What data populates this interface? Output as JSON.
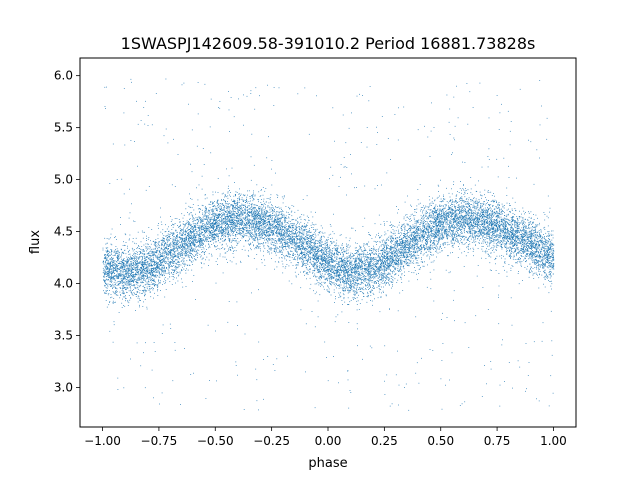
{
  "chart_data": {
    "type": "scatter",
    "title": "1SWASPJ142609.58-391010.2 Period 16881.73828s",
    "xlabel": "phase",
    "ylabel": "flux",
    "xlim": [
      -1.1,
      1.1
    ],
    "ylim": [
      2.62,
      6.17
    ],
    "xticks": [
      -1.0,
      -0.75,
      -0.5,
      -0.25,
      0.0,
      0.25,
      0.5,
      0.75,
      1.0
    ],
    "xtick_labels": [
      "−1.00",
      "−0.75",
      "−0.50",
      "−0.25",
      "0.00",
      "0.25",
      "0.50",
      "0.75",
      "1.00"
    ],
    "yticks": [
      3.0,
      3.5,
      4.0,
      4.5,
      5.0,
      5.5,
      6.0
    ],
    "ytick_labels": [
      "3.0",
      "3.5",
      "4.0",
      "4.5",
      "5.0",
      "5.5",
      "6.0"
    ],
    "grid": false,
    "marker_color": "#1f77b4",
    "series": [
      {
        "x_range": [
          -1.0,
          1.0
        ],
        "curve_points": {
          "x": [
            -1.0,
            -0.9,
            -0.8,
            -0.7,
            -0.6,
            -0.5,
            -0.4,
            -0.3,
            -0.2,
            -0.1,
            0.0,
            0.1,
            0.2,
            0.3,
            0.4,
            0.5,
            0.6,
            0.7,
            0.8,
            0.9,
            1.0
          ],
          "y": [
            4.15,
            4.1,
            4.15,
            4.3,
            4.45,
            4.58,
            4.63,
            4.58,
            4.5,
            4.35,
            4.2,
            4.1,
            4.15,
            4.3,
            4.45,
            4.58,
            4.63,
            4.58,
            4.5,
            4.38,
            4.25
          ]
        },
        "band_halfwidth": 0.28,
        "outlier_range": [
          2.78,
          6.0
        ]
      }
    ]
  }
}
